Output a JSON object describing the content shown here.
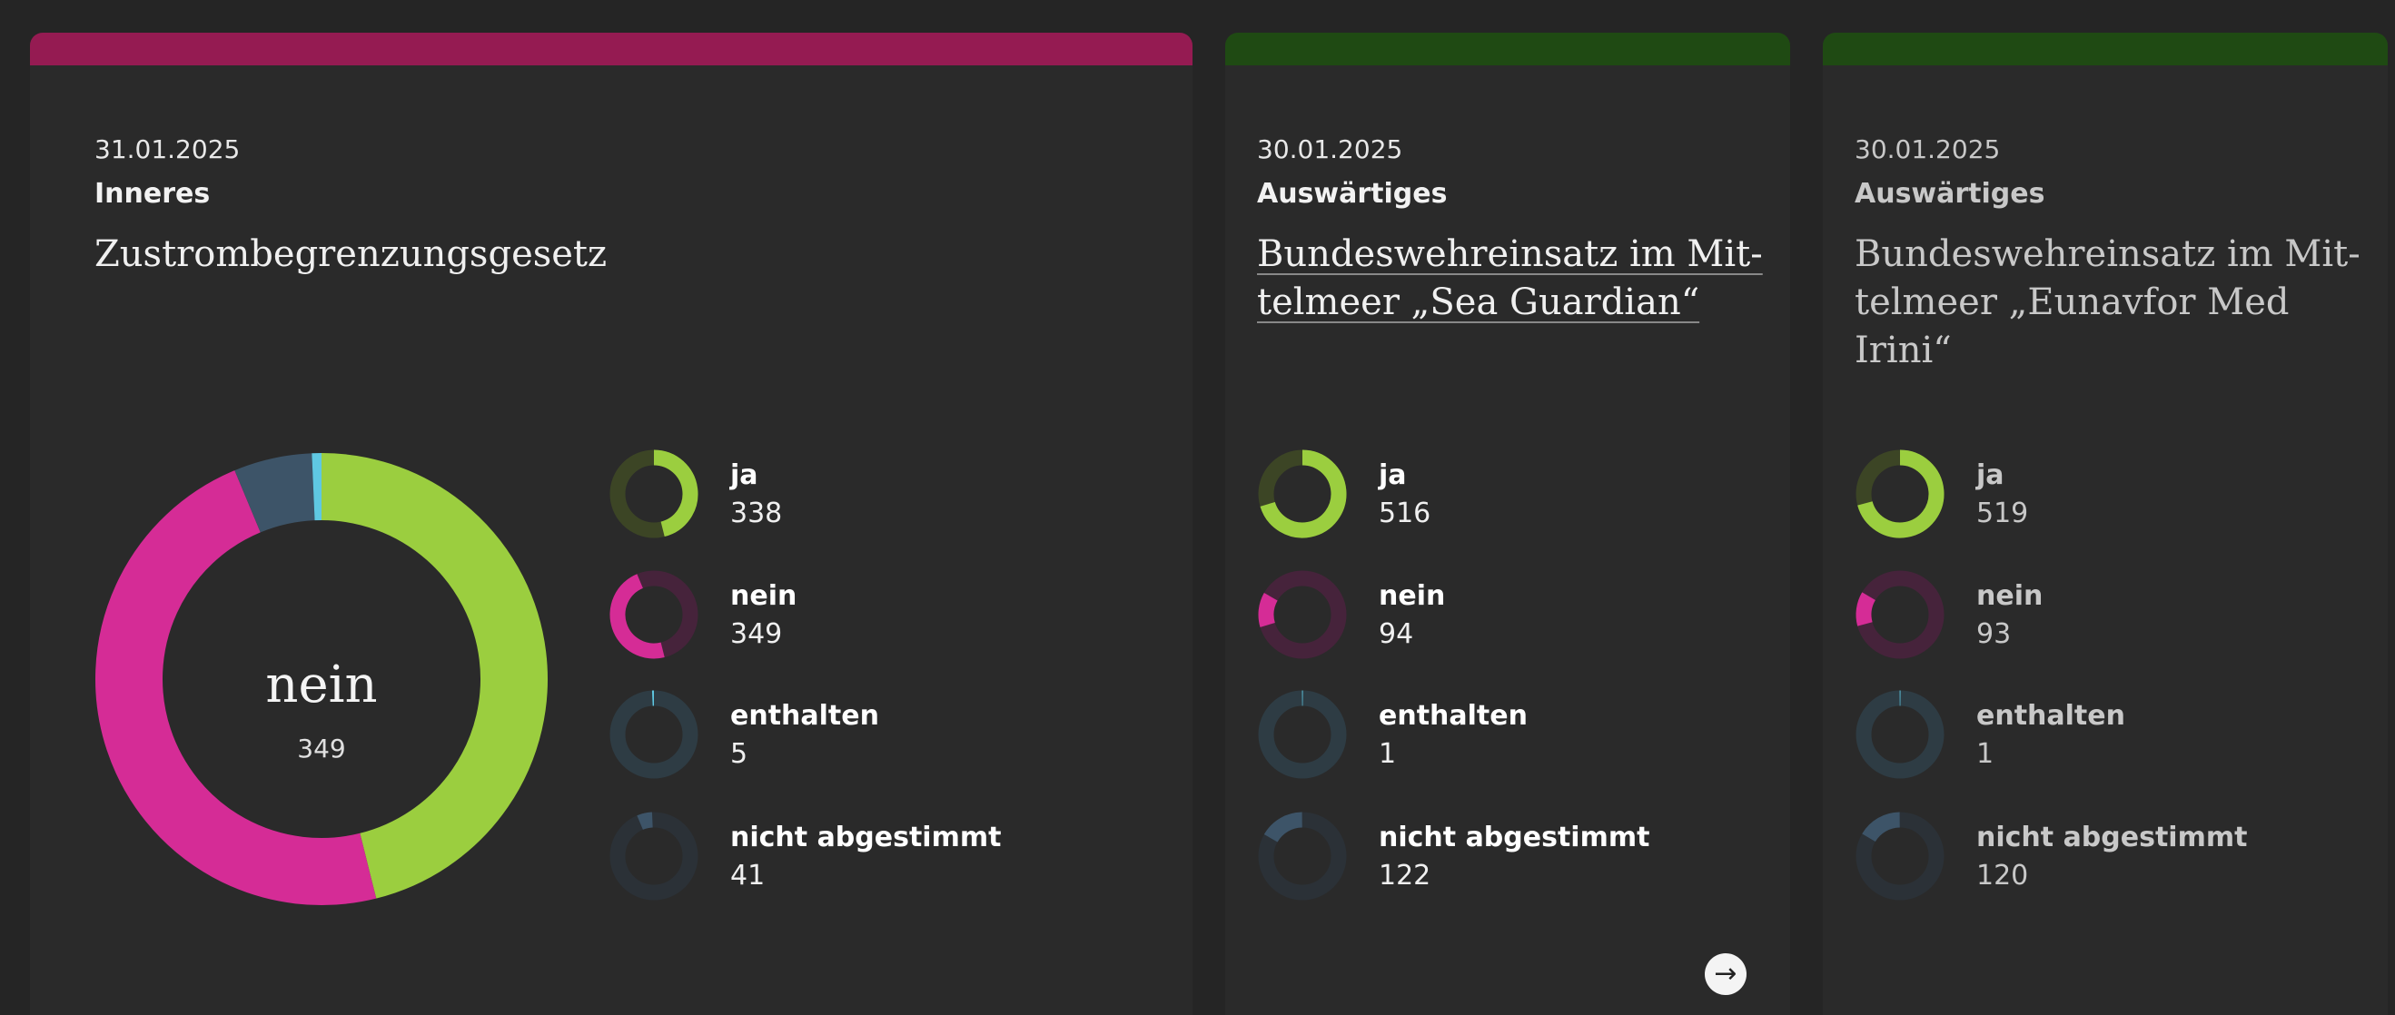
{
  "colors": {
    "ja": "#9bce3f",
    "ja_track": "#3c4525",
    "nein": "#d52c96",
    "nein_track": "#46233b",
    "enthalten": "#5fc8e2",
    "enthalten_track": "#2e3c44",
    "nicht": "#3d5468",
    "nicht_track": "#2b3137"
  },
  "cards": [
    {
      "accent": "#951b52",
      "date": "31.01.2025",
      "category": "Inneres",
      "title": "Zustrombegrenzungsgesetz",
      "center_label": "nein",
      "center_value": "349",
      "votes": [
        {
          "label": "ja",
          "value": "338"
        },
        {
          "label": "nein",
          "value": "349"
        },
        {
          "label": "enthalten",
          "value": "5"
        },
        {
          "label": "nicht abgestimmt",
          "value": "41"
        }
      ]
    },
    {
      "accent": "#1f4a13",
      "date": "30.01.2025",
      "category": "Auswärtiges",
      "title_line1": "Bundeswehreinsatz im Mit-",
      "title_line2": "telmeer „Sea Guardian“",
      "votes": [
        {
          "label": "ja",
          "value": "516"
        },
        {
          "label": "nein",
          "value": "94"
        },
        {
          "label": "enthalten",
          "value": "1"
        },
        {
          "label": "nicht abgestimmt",
          "value": "122"
        }
      ],
      "next_icon": "arrow-right-icon"
    },
    {
      "accent": "#1f4a13",
      "date": "30.01.2025",
      "category": "Auswärtiges",
      "title_line1": "Bundeswehreinsatz im Mit-",
      "title_line2": "telmeer „Eunavfor Med",
      "title_line3": "Irini“",
      "votes": [
        {
          "label": "ja",
          "value": "519"
        },
        {
          "label": "nein",
          "value": "93"
        },
        {
          "label": "enthalten",
          "value": "1"
        },
        {
          "label": "nicht abgestimmt",
          "value": "120"
        }
      ]
    }
  ]
}
